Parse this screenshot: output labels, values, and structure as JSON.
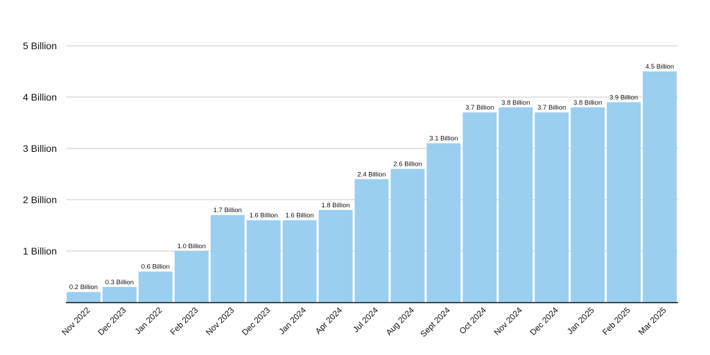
{
  "colors": {
    "bar": "#9acfef",
    "grid": "#c9c9c9",
    "baseline": "#111111",
    "text": "#111111"
  },
  "chart_data": {
    "type": "bar",
    "title": "",
    "xlabel": "",
    "ylabel": "",
    "ylim": [
      0,
      5
    ],
    "grid": true,
    "y_ticks": [
      {
        "value": 1,
        "label": "1 Billion"
      },
      {
        "value": 2,
        "label": "2 Billion"
      },
      {
        "value": 3,
        "label": "3 Billion"
      },
      {
        "value": 4,
        "label": "4 Billion"
      },
      {
        "value": 5,
        "label": "5 Billion"
      }
    ],
    "categories": [
      "Nov 2022",
      "Dec 2023",
      "Jan 2022",
      "Feb 2023",
      "Nov 2023",
      "Dec 2023",
      "Jan 2024",
      "Apr 2024",
      "Jul 2024",
      "Aug 2024",
      "Sept 2024",
      "Oct 2024",
      "Nov 2024",
      "Dec 2024",
      "Jan 2025",
      "Feb 2025",
      "Mar 2025"
    ],
    "values": [
      0.2,
      0.3,
      0.6,
      1.0,
      1.7,
      1.6,
      1.6,
      1.8,
      2.4,
      2.6,
      3.1,
      3.7,
      3.8,
      3.7,
      3.8,
      3.9,
      4.5
    ],
    "data_labels": [
      "0.2 Billion",
      "0.3 Billion",
      "0.6 Billion",
      "1.0 Billion",
      "1.7 Billion",
      "1.6 Billion",
      "1.6 Billion",
      "1.8 Billion",
      "2.4 Billion",
      "2.6 Billion",
      "3.1 Billion",
      "3.7 Billion",
      "3.8 Billion",
      "3.7 Billion",
      "3.8 Billion",
      "3.9 Billion",
      "4.5 Billion"
    ]
  }
}
